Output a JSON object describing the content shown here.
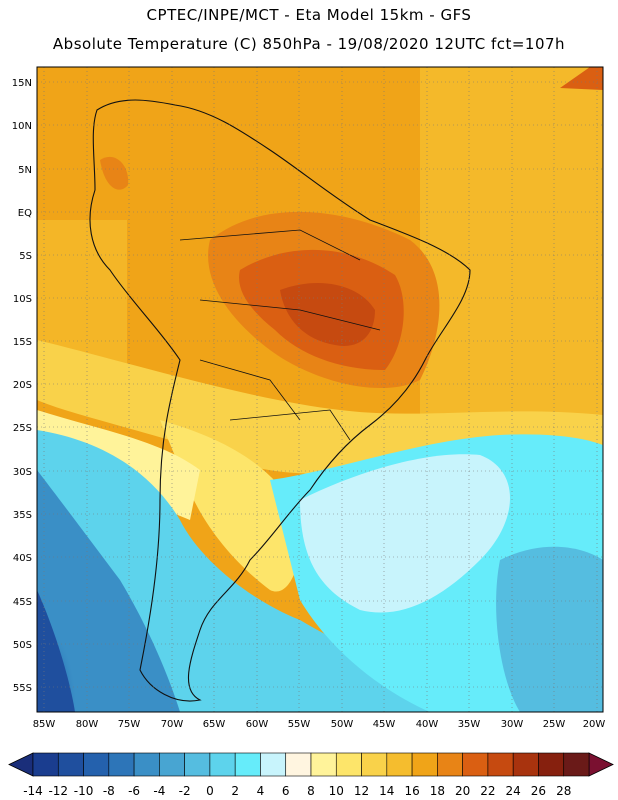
{
  "header": {
    "title_line1": "CPTEC/INPE/MCT -  Eta Model 15km - GFS",
    "title_line2": "Absolute Temperature (C) 850hPa - 19/08/2020 12UTC fct=107h"
  },
  "map": {
    "lat_labels": [
      "15N",
      "10N",
      "5N",
      "EQ",
      "5S",
      "10S",
      "15S",
      "20S",
      "25S",
      "30S",
      "35S",
      "40S",
      "45S",
      "50S",
      "55S"
    ],
    "lon_labels": [
      "85W",
      "80W",
      "75W",
      "70W",
      "65W",
      "60W",
      "55W",
      "50W",
      "45W",
      "40W",
      "35W",
      "30W",
      "25W",
      "20W"
    ]
  },
  "colorbar": {
    "tick_labels": [
      "-14",
      "-12",
      "-10",
      "-8",
      "-6",
      "-4",
      "-2",
      "0",
      "2",
      "4",
      "6",
      "8",
      "10",
      "12",
      "14",
      "16",
      "18",
      "20",
      "22",
      "24",
      "26",
      "28"
    ],
    "colors": [
      "#1a3d8f",
      "#1f4f9e",
      "#2461ad",
      "#2d75b8",
      "#3a8fc6",
      "#48a5d2",
      "#55bde0",
      "#5dd3ec",
      "#66ecfa",
      "#c8f4fc",
      "#fff5e0",
      "#fff39a",
      "#fde56a",
      "#f9d24a",
      "#f5bd2e",
      "#f0a418",
      "#e88416",
      "#da5f12",
      "#c64a10",
      "#a8330e",
      "#86200e",
      "#6a1a18"
    ],
    "low_color": "#1a2e7a",
    "high_color": "#7a1030"
  }
}
